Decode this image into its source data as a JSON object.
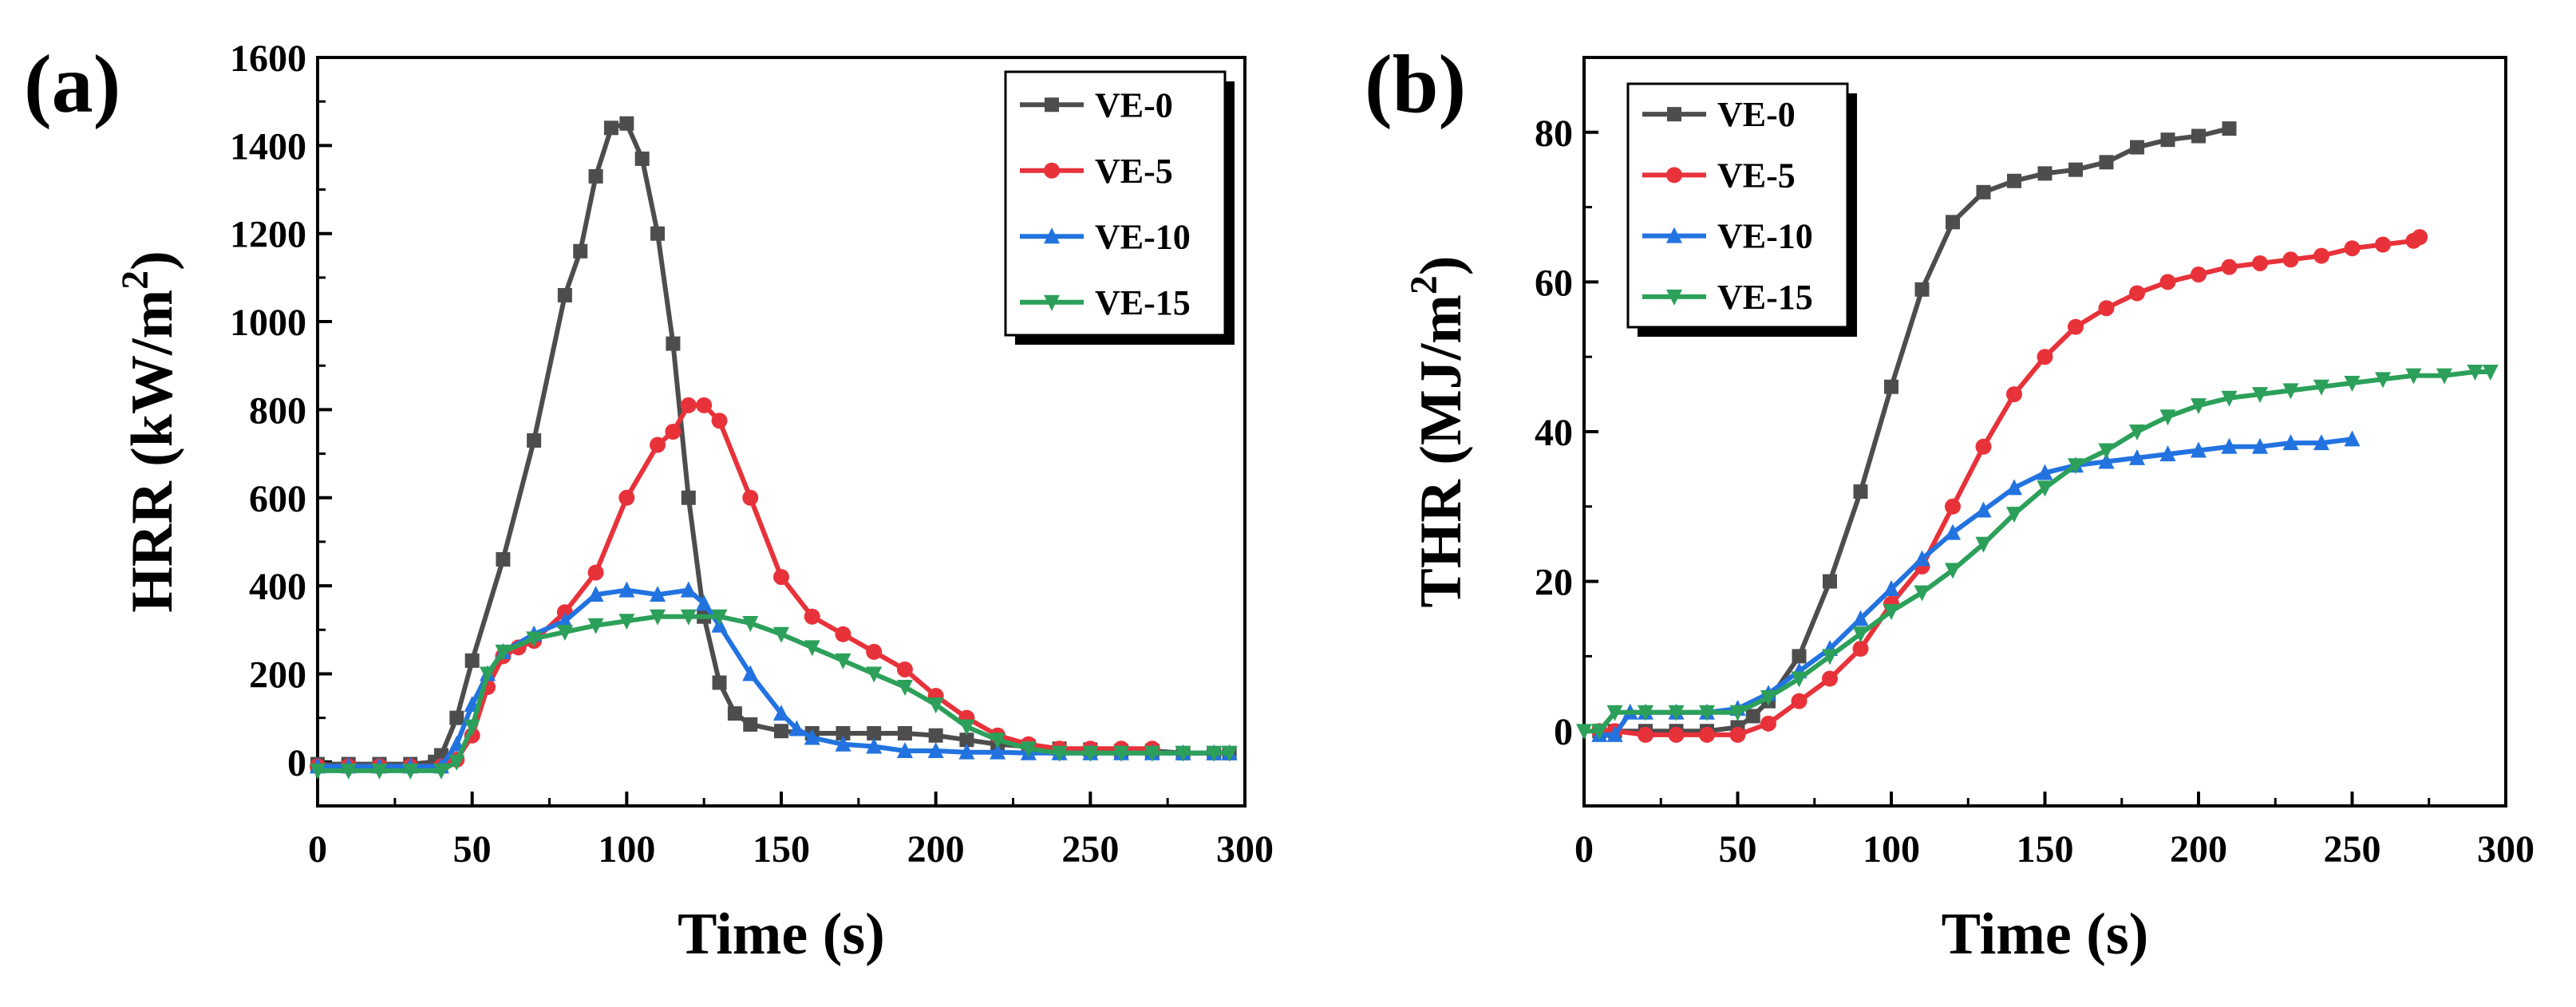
{
  "chart_data": [
    {
      "panel_label": "(a)",
      "type": "line",
      "xlabel": "Time (s)",
      "ylabel_main": "HRR (kW/m",
      "ylabel_sup": "2",
      "ylabel_close": ")",
      "xlim": [
        0,
        300
      ],
      "ylim": [
        -100,
        1600
      ],
      "xticks": [
        0,
        50,
        100,
        150,
        200,
        250,
        300
      ],
      "yticks": [
        0,
        200,
        400,
        600,
        800,
        1000,
        1200,
        1400,
        1600
      ],
      "grid": false,
      "legend_position": "top-right",
      "series": [
        {
          "name": "VE-0",
          "color": "#4d4d4d",
          "marker": "square",
          "points": [
            [
              0,
              -5
            ],
            [
              10,
              -5
            ],
            [
              20,
              -5
            ],
            [
              30,
              -5
            ],
            [
              38,
              0
            ],
            [
              40,
              15
            ],
            [
              45,
              100
            ],
            [
              50,
              230
            ],
            [
              60,
              460
            ],
            [
              70,
              730
            ],
            [
              80,
              1060
            ],
            [
              85,
              1160
            ],
            [
              90,
              1330
            ],
            [
              95,
              1440
            ],
            [
              100,
              1450
            ],
            [
              105,
              1370
            ],
            [
              110,
              1200
            ],
            [
              115,
              950
            ],
            [
              120,
              600
            ],
            [
              125,
              330
            ],
            [
              130,
              180
            ],
            [
              135,
              110
            ],
            [
              140,
              85
            ],
            [
              150,
              70
            ],
            [
              160,
              65
            ],
            [
              170,
              65
            ],
            [
              180,
              65
            ],
            [
              190,
              65
            ],
            [
              200,
              60
            ],
            [
              210,
              50
            ],
            [
              220,
              40
            ],
            [
              230,
              35
            ],
            [
              240,
              30
            ],
            [
              250,
              28
            ],
            [
              260,
              25
            ],
            [
              270,
              25
            ],
            [
              280,
              20
            ],
            [
              290,
              20
            ],
            [
              295,
              20
            ]
          ]
        },
        {
          "name": "VE-5",
          "color": "#e8323a",
          "marker": "circle",
          "points": [
            [
              0,
              -10
            ],
            [
              10,
              -10
            ],
            [
              20,
              -10
            ],
            [
              30,
              -10
            ],
            [
              40,
              -10
            ],
            [
              45,
              5
            ],
            [
              50,
              60
            ],
            [
              55,
              170
            ],
            [
              60,
              240
            ],
            [
              65,
              260
            ],
            [
              70,
              275
            ],
            [
              80,
              340
            ],
            [
              90,
              430
            ],
            [
              100,
              600
            ],
            [
              110,
              720
            ],
            [
              115,
              750
            ],
            [
              120,
              810
            ],
            [
              125,
              810
            ],
            [
              130,
              775
            ],
            [
              140,
              600
            ],
            [
              150,
              420
            ],
            [
              160,
              330
            ],
            [
              170,
              290
            ],
            [
              180,
              250
            ],
            [
              190,
              210
            ],
            [
              200,
              150
            ],
            [
              210,
              100
            ],
            [
              220,
              60
            ],
            [
              230,
              40
            ],
            [
              240,
              30
            ],
            [
              250,
              30
            ],
            [
              260,
              30
            ],
            [
              270,
              30
            ]
          ]
        },
        {
          "name": "VE-10",
          "color": "#2273e0",
          "marker": "triangle-up",
          "points": [
            [
              0,
              -10
            ],
            [
              10,
              -10
            ],
            [
              20,
              -10
            ],
            [
              30,
              -10
            ],
            [
              40,
              -10
            ],
            [
              45,
              40
            ],
            [
              50,
              130
            ],
            [
              55,
              200
            ],
            [
              60,
              250
            ],
            [
              70,
              290
            ],
            [
              80,
              320
            ],
            [
              90,
              380
            ],
            [
              100,
              390
            ],
            [
              110,
              380
            ],
            [
              120,
              390
            ],
            [
              125,
              360
            ],
            [
              130,
              310
            ],
            [
              140,
              200
            ],
            [
              150,
              110
            ],
            [
              155,
              75
            ],
            [
              160,
              55
            ],
            [
              170,
              40
            ],
            [
              180,
              35
            ],
            [
              190,
              25
            ],
            [
              200,
              25
            ],
            [
              210,
              22
            ],
            [
              220,
              22
            ],
            [
              230,
              20
            ],
            [
              240,
              20
            ],
            [
              250,
              20
            ],
            [
              260,
              20
            ],
            [
              270,
              20
            ],
            [
              280,
              20
            ],
            [
              290,
              20
            ],
            [
              295,
              20
            ]
          ]
        },
        {
          "name": "VE-15",
          "color": "#2ca05a",
          "marker": "triangle-down",
          "points": [
            [
              0,
              -20
            ],
            [
              10,
              -20
            ],
            [
              20,
              -20
            ],
            [
              30,
              -20
            ],
            [
              40,
              -20
            ],
            [
              45,
              0
            ],
            [
              50,
              80
            ],
            [
              55,
              200
            ],
            [
              60,
              250
            ],
            [
              70,
              280
            ],
            [
              80,
              295
            ],
            [
              90,
              310
            ],
            [
              100,
              320
            ],
            [
              110,
              330
            ],
            [
              120,
              330
            ],
            [
              130,
              330
            ],
            [
              140,
              315
            ],
            [
              150,
              290
            ],
            [
              160,
              260
            ],
            [
              170,
              230
            ],
            [
              180,
              200
            ],
            [
              190,
              170
            ],
            [
              200,
              130
            ],
            [
              210,
              80
            ],
            [
              220,
              50
            ],
            [
              230,
              30
            ],
            [
              240,
              20
            ],
            [
              250,
              20
            ],
            [
              260,
              20
            ],
            [
              270,
              20
            ],
            [
              280,
              20
            ],
            [
              290,
              20
            ],
            [
              295,
              20
            ]
          ]
        }
      ]
    },
    {
      "panel_label": "(b)",
      "type": "line",
      "xlabel": "Time (s)",
      "ylabel_main": "THR (MJ/m",
      "ylabel_sup": "2",
      "ylabel_close": ")",
      "xlim": [
        0,
        300
      ],
      "ylim": [
        -10,
        90
      ],
      "xticks": [
        0,
        50,
        100,
        150,
        200,
        250,
        300
      ],
      "yticks": [
        0,
        20,
        40,
        60,
        80
      ],
      "grid": false,
      "legend_position": "top-left",
      "series": [
        {
          "name": "VE-0",
          "color": "#4d4d4d",
          "marker": "square",
          "points": [
            [
              5,
              0
            ],
            [
              10,
              0
            ],
            [
              20,
              0
            ],
            [
              30,
              0
            ],
            [
              40,
              0
            ],
            [
              50,
              0.5
            ],
            [
              55,
              2
            ],
            [
              60,
              4
            ],
            [
              70,
              10
            ],
            [
              80,
              20
            ],
            [
              90,
              32
            ],
            [
              100,
              46
            ],
            [
              110,
              59
            ],
            [
              120,
              68
            ],
            [
              130,
              72
            ],
            [
              140,
              73.5
            ],
            [
              150,
              74.5
            ],
            [
              160,
              75
            ],
            [
              170,
              76
            ],
            [
              180,
              78
            ],
            [
              190,
              79
            ],
            [
              200,
              79.5
            ],
            [
              210,
              80.5
            ]
          ]
        },
        {
          "name": "VE-5",
          "color": "#e8323a",
          "marker": "circle",
          "points": [
            [
              5,
              0
            ],
            [
              10,
              0
            ],
            [
              20,
              -0.5
            ],
            [
              30,
              -0.5
            ],
            [
              40,
              -0.5
            ],
            [
              50,
              -0.5
            ],
            [
              60,
              1
            ],
            [
              70,
              4
            ],
            [
              80,
              7
            ],
            [
              90,
              11
            ],
            [
              100,
              17
            ],
            [
              110,
              22
            ],
            [
              120,
              30
            ],
            [
              130,
              38
            ],
            [
              140,
              45
            ],
            [
              150,
              50
            ],
            [
              160,
              54
            ],
            [
              170,
              56.5
            ],
            [
              180,
              58.5
            ],
            [
              190,
              60
            ],
            [
              200,
              61
            ],
            [
              210,
              62
            ],
            [
              220,
              62.5
            ],
            [
              230,
              63
            ],
            [
              240,
              63.5
            ],
            [
              250,
              64.5
            ],
            [
              260,
              65
            ],
            [
              270,
              65.5
            ],
            [
              272,
              66
            ]
          ]
        },
        {
          "name": "VE-10",
          "color": "#2273e0",
          "marker": "triangle-up",
          "points": [
            [
              5,
              -0.5
            ],
            [
              10,
              -0.5
            ],
            [
              15,
              2.5
            ],
            [
              20,
              2.5
            ],
            [
              30,
              2.5
            ],
            [
              40,
              2.5
            ],
            [
              50,
              3
            ],
            [
              60,
              5
            ],
            [
              70,
              8
            ],
            [
              80,
              11
            ],
            [
              90,
              15
            ],
            [
              100,
              19
            ],
            [
              110,
              23
            ],
            [
              120,
              26.5
            ],
            [
              130,
              29.5
            ],
            [
              140,
              32.5
            ],
            [
              150,
              34.5
            ],
            [
              160,
              35.5
            ],
            [
              170,
              36
            ],
            [
              180,
              36.5
            ],
            [
              190,
              37
            ],
            [
              200,
              37.5
            ],
            [
              210,
              38
            ],
            [
              220,
              38
            ],
            [
              230,
              38.5
            ],
            [
              240,
              38.5
            ],
            [
              250,
              39
            ]
          ]
        },
        {
          "name": "VE-15",
          "color": "#2ca05a",
          "marker": "triangle-down",
          "points": [
            [
              0,
              0
            ],
            [
              5,
              0
            ],
            [
              10,
              2.5
            ],
            [
              20,
              2.5
            ],
            [
              30,
              2.5
            ],
            [
              40,
              2.5
            ],
            [
              50,
              2.5
            ],
            [
              60,
              4.5
            ],
            [
              70,
              7
            ],
            [
              80,
              10
            ],
            [
              90,
              13
            ],
            [
              100,
              16
            ],
            [
              110,
              18.5
            ],
            [
              120,
              21.5
            ],
            [
              130,
              25
            ],
            [
              140,
              29
            ],
            [
              150,
              32.5
            ],
            [
              160,
              35.5
            ],
            [
              170,
              37.5
            ],
            [
              180,
              40
            ],
            [
              190,
              42
            ],
            [
              200,
              43.5
            ],
            [
              210,
              44.5
            ],
            [
              220,
              45
            ],
            [
              230,
              45.5
            ],
            [
              240,
              46
            ],
            [
              250,
              46.5
            ],
            [
              260,
              47
            ],
            [
              270,
              47.5
            ],
            [
              280,
              47.5
            ],
            [
              290,
              48
            ],
            [
              295,
              48
            ]
          ]
        }
      ]
    }
  ]
}
